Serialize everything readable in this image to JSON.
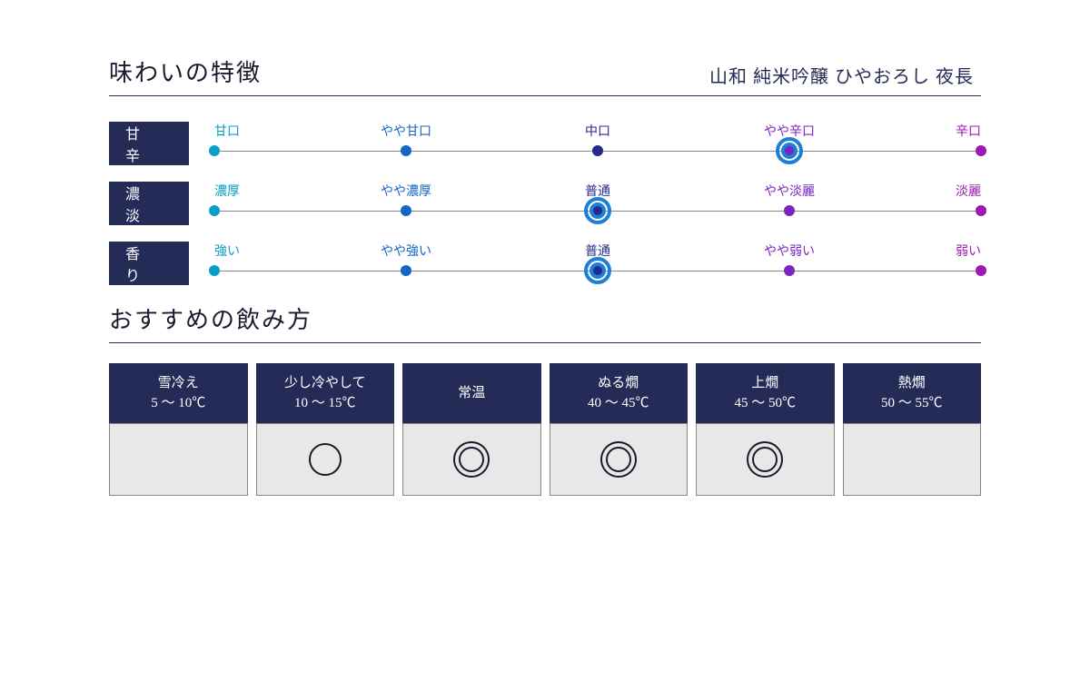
{
  "colors": {
    "navy": "#252b57",
    "navy_line": "#252b57",
    "cell_bg": "#e8e8e8",
    "cell_border": "#888888",
    "axis": "#888888",
    "ring": "#1d7fd6",
    "mark": "#1a1a2e",
    "text_dark": "#1a1a2e"
  },
  "taste": {
    "title": "味わいの特徴",
    "product": "山和 純米吟醸 ひやおろし 夜長",
    "positions_pct": [
      0,
      25,
      50,
      75,
      100
    ],
    "label_colors": [
      "#06a0c4",
      "#1666c4",
      "#252b8c",
      "#7a24c4",
      "#9c1ab4"
    ],
    "dot_colors": [
      "#06a0c4",
      "#1666c4",
      "#252b8c",
      "#7a24c4",
      "#9c1ab4"
    ],
    "dot_size": 12,
    "ring_outer": 30,
    "ring_inner": 18,
    "ring_stroke": 4,
    "axis_inset_pct": 0,
    "rows": [
      {
        "label": "甘 辛",
        "ticks": [
          "甘口",
          "やや甘口",
          "中口",
          "やや辛口",
          "辛口"
        ],
        "selected_index": 3
      },
      {
        "label": "濃 淡",
        "ticks": [
          "濃厚",
          "やや濃厚",
          "普通",
          "やや淡麗",
          "淡麗"
        ],
        "selected_index": 2
      },
      {
        "label": "香 り",
        "ticks": [
          "強い",
          "やや強い",
          "普通",
          "やや弱い",
          "弱い"
        ],
        "selected_index": 2
      }
    ]
  },
  "drink": {
    "title": "おすすめの飲み方",
    "columns": [
      {
        "name": "雪冷え",
        "range": "5 〜 10℃",
        "mark": "none"
      },
      {
        "name": "少し冷やして",
        "range": "10 〜 15℃",
        "mark": "single"
      },
      {
        "name": "常温",
        "range": "",
        "mark": "double"
      },
      {
        "name": "ぬる燗",
        "range": "40 〜 45℃",
        "mark": "double"
      },
      {
        "name": "上燗",
        "range": "45 〜 50℃",
        "mark": "double"
      },
      {
        "name": "熱燗",
        "range": "50 〜 55℃",
        "mark": "none"
      }
    ],
    "single_mark": {
      "diameter": 36,
      "stroke": 2
    },
    "double_mark": {
      "outer": 40,
      "outer_stroke": 2,
      "inner": 28,
      "inner_stroke": 2
    }
  }
}
